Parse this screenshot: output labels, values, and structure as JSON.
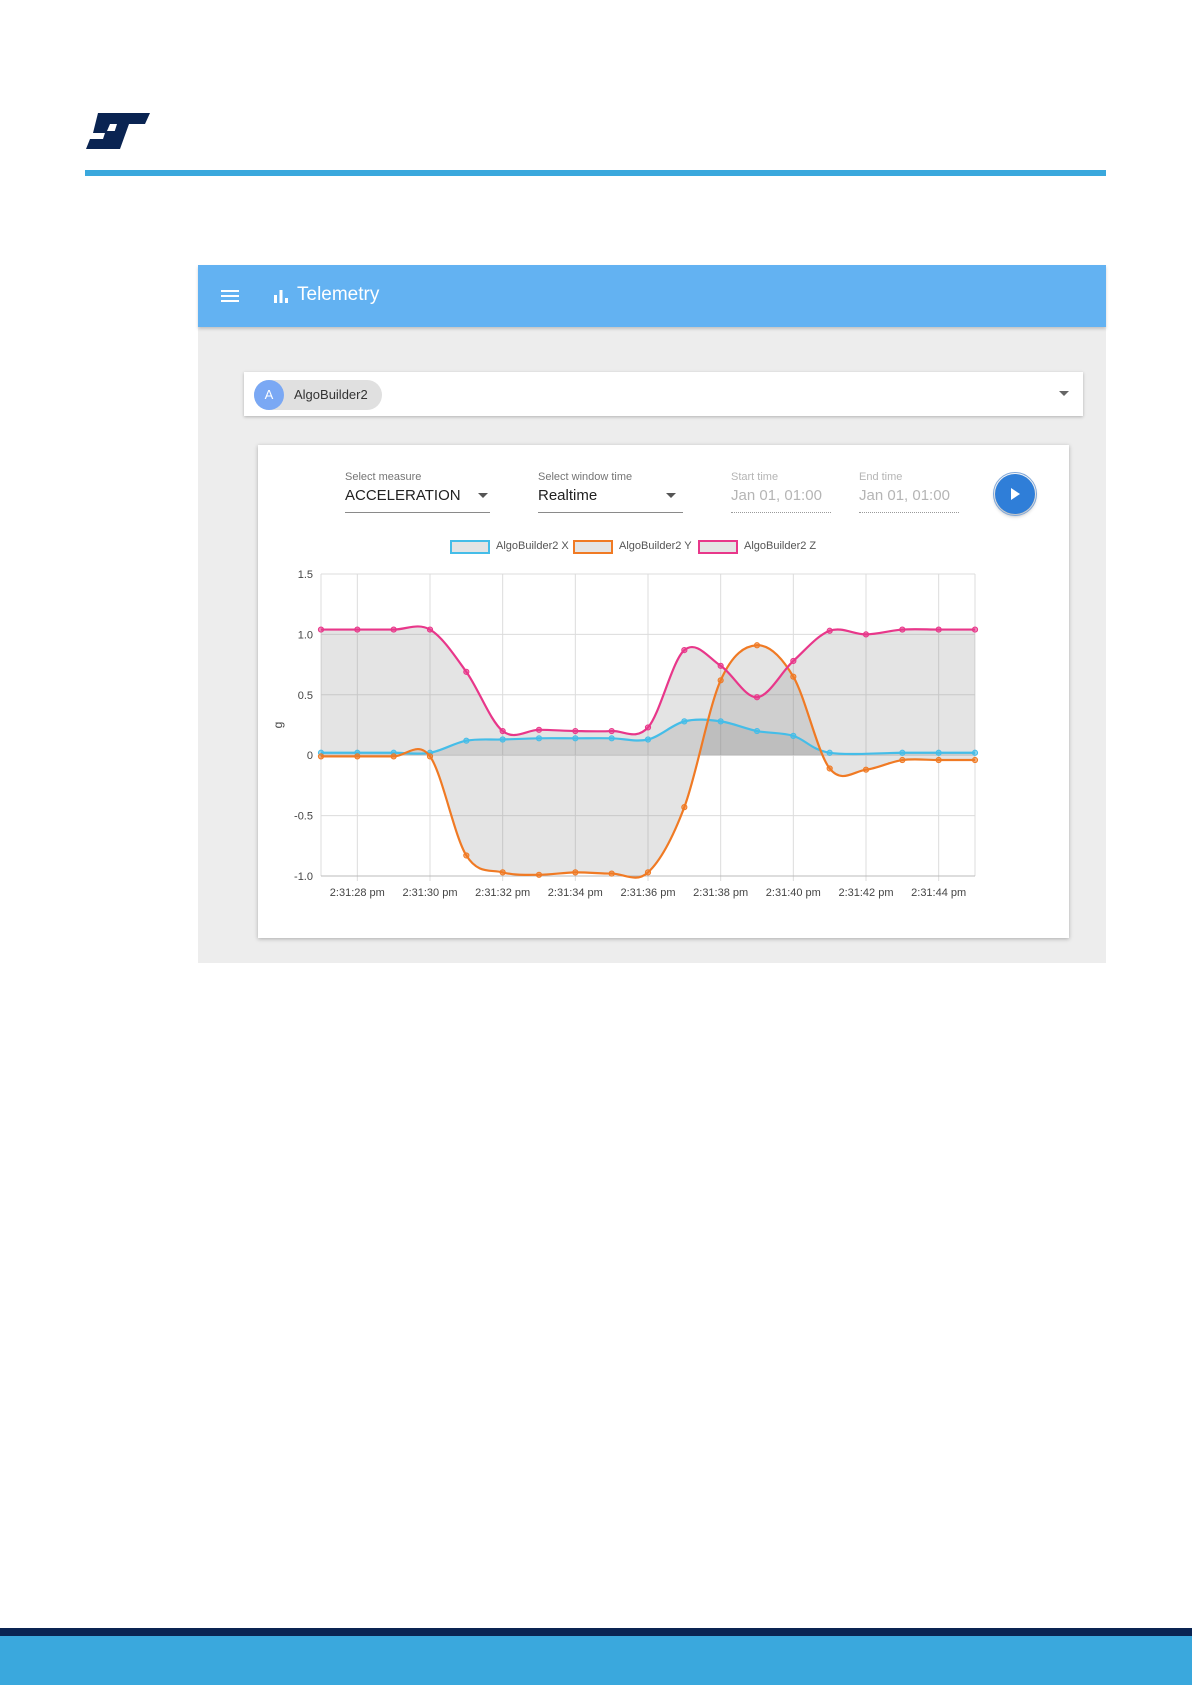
{
  "app": {
    "title": "Telemetry",
    "icons": {
      "menu": "menu-icon",
      "title": "bar-chart-icon",
      "play": "play-icon",
      "dropdown": "caret-down-icon",
      "logo": "st-logo"
    }
  },
  "device_selector": {
    "chip_initial": "A",
    "chip_label": "AlgoBuilder2"
  },
  "controls": {
    "measure": {
      "label": "Select measure",
      "value": "ACCELERATION"
    },
    "window": {
      "label": "Select window time",
      "value": "Realtime"
    },
    "start": {
      "label": "Start time",
      "value": "Jan 01, 01:00"
    },
    "end": {
      "label": "End time",
      "value": "Jan 01, 01:00"
    }
  },
  "colors": {
    "accent": "#3aa8dd",
    "appbar": "#63b2f2",
    "footer_dark": "#0a2452",
    "play": "#2f7ed8"
  },
  "chart_data": {
    "type": "line",
    "ylabel": "g",
    "xlabel": "",
    "ylim": [
      -1.0,
      1.5
    ],
    "xlim": [
      27,
      45
    ],
    "yticks": [
      -1.0,
      -0.5,
      0,
      0.5,
      1.0,
      1.5
    ],
    "ytick_labels": [
      "-1.0",
      "-0.5",
      "0",
      "0.5",
      "1.0",
      "1.5"
    ],
    "xticks": [
      28,
      30,
      32,
      34,
      36,
      38,
      40,
      42,
      44
    ],
    "xtick_labels": [
      "2:31:28 pm",
      "2:31:30 pm",
      "2:31:32 pm",
      "2:31:34 pm",
      "2:31:36 pm",
      "2:31:38 pm",
      "2:31:40 pm",
      "2:31:42 pm",
      "2:31:44 pm"
    ],
    "grid": true,
    "legend": "top-center",
    "area_fill": true,
    "series": [
      {
        "name": "AlgoBuilder2  X",
        "color": "#45bde8",
        "points": [
          [
            27,
            0.02
          ],
          [
            28,
            0.02
          ],
          [
            29,
            0.02
          ],
          [
            30,
            0.02
          ],
          [
            31,
            0.12
          ],
          [
            32,
            0.13
          ],
          [
            33,
            0.14
          ],
          [
            34,
            0.14
          ],
          [
            35,
            0.14
          ],
          [
            36,
            0.13
          ],
          [
            37,
            0.28
          ],
          [
            38,
            0.28
          ],
          [
            39,
            0.2
          ],
          [
            40,
            0.16
          ],
          [
            41,
            0.02
          ],
          [
            43,
            0.02
          ],
          [
            44,
            0.02
          ],
          [
            45,
            0.02
          ]
        ]
      },
      {
        "name": "AlgoBuilder2  Y",
        "color": "#f07a24",
        "points": [
          [
            27,
            -0.01
          ],
          [
            28,
            -0.01
          ],
          [
            29,
            -0.01
          ],
          [
            30,
            -0.01
          ],
          [
            31,
            -0.83
          ],
          [
            32,
            -0.97
          ],
          [
            33,
            -0.99
          ],
          [
            34,
            -0.97
          ],
          [
            35,
            -0.98
          ],
          [
            36,
            -0.97
          ],
          [
            37,
            -0.43
          ],
          [
            38,
            0.62
          ],
          [
            39,
            0.91
          ],
          [
            40,
            0.65
          ],
          [
            41,
            -0.11
          ],
          [
            42,
            -0.12
          ],
          [
            43,
            -0.04
          ],
          [
            44,
            -0.04
          ],
          [
            45,
            -0.04
          ]
        ]
      },
      {
        "name": "AlgoBuilder2  Z",
        "color": "#e8378a",
        "points": [
          [
            27,
            1.04
          ],
          [
            28,
            1.04
          ],
          [
            29,
            1.04
          ],
          [
            30,
            1.04
          ],
          [
            31,
            0.69
          ],
          [
            32,
            0.2
          ],
          [
            33,
            0.21
          ],
          [
            34,
            0.2
          ],
          [
            35,
            0.2
          ],
          [
            36,
            0.23
          ],
          [
            37,
            0.87
          ],
          [
            38,
            0.74
          ],
          [
            39,
            0.48
          ],
          [
            40,
            0.78
          ],
          [
            41,
            1.03
          ],
          [
            42,
            1.0
          ],
          [
            43,
            1.04
          ],
          [
            44,
            1.04
          ],
          [
            45,
            1.04
          ]
        ]
      }
    ]
  }
}
